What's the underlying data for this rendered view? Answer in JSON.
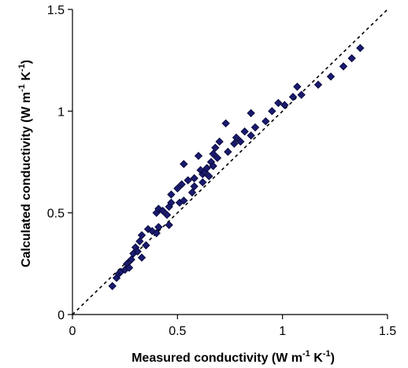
{
  "chart_data": {
    "type": "scatter",
    "xlabel": {
      "main": "Measured conductivity (W m",
      "sup1": "-1",
      "mid": " K",
      "sup2": "-1",
      "end": ")"
    },
    "ylabel": {
      "main": "Calculated conductivity (W m",
      "sup1": "-1",
      "mid": " K",
      "sup2": "-1",
      "end": ")"
    },
    "xlim": [
      0,
      1.5
    ],
    "ylim": [
      0,
      1.5
    ],
    "xticks": [
      {
        "value": 0,
        "label": "0"
      },
      {
        "value": 0.5,
        "label": "0.5"
      },
      {
        "value": 1,
        "label": "1"
      },
      {
        "value": 1.5,
        "label": "1.5"
      }
    ],
    "yticks": [
      {
        "value": 0,
        "label": "0"
      },
      {
        "value": 0.5,
        "label": "0.5"
      },
      {
        "value": 1,
        "label": "1"
      },
      {
        "value": 1.5,
        "label": "1.5"
      }
    ],
    "grid": false,
    "reference_line": {
      "style": "dashed",
      "from": [
        0,
        0
      ],
      "to": [
        1.5,
        1.5
      ]
    },
    "marker": {
      "shape": "diamond",
      "fill": "#1a1a6e",
      "stroke": "#000033"
    },
    "points": [
      [
        0.19,
        0.14
      ],
      [
        0.21,
        0.18
      ],
      [
        0.22,
        0.2
      ],
      [
        0.23,
        0.21
      ],
      [
        0.25,
        0.22
      ],
      [
        0.26,
        0.25
      ],
      [
        0.27,
        0.23
      ],
      [
        0.28,
        0.27
      ],
      [
        0.29,
        0.3
      ],
      [
        0.3,
        0.33
      ],
      [
        0.31,
        0.31
      ],
      [
        0.32,
        0.36
      ],
      [
        0.33,
        0.39
      ],
      [
        0.33,
        0.28
      ],
      [
        0.35,
        0.34
      ],
      [
        0.36,
        0.42
      ],
      [
        0.38,
        0.41
      ],
      [
        0.4,
        0.4
      ],
      [
        0.4,
        0.5
      ],
      [
        0.41,
        0.52
      ],
      [
        0.41,
        0.43
      ],
      [
        0.43,
        0.51
      ],
      [
        0.45,
        0.49
      ],
      [
        0.46,
        0.53
      ],
      [
        0.46,
        0.44
      ],
      [
        0.47,
        0.55
      ],
      [
        0.47,
        0.59
      ],
      [
        0.5,
        0.62
      ],
      [
        0.51,
        0.55
      ],
      [
        0.52,
        0.64
      ],
      [
        0.53,
        0.74
      ],
      [
        0.53,
        0.56
      ],
      [
        0.55,
        0.66
      ],
      [
        0.57,
        0.6
      ],
      [
        0.58,
        0.67
      ],
      [
        0.58,
        0.63
      ],
      [
        0.6,
        0.78
      ],
      [
        0.61,
        0.71
      ],
      [
        0.62,
        0.65
      ],
      [
        0.62,
        0.69
      ],
      [
        0.63,
        0.7
      ],
      [
        0.64,
        0.72
      ],
      [
        0.65,
        0.68
      ],
      [
        0.66,
        0.75
      ],
      [
        0.67,
        0.73
      ],
      [
        0.67,
        0.79
      ],
      [
        0.68,
        0.82
      ],
      [
        0.69,
        0.77
      ],
      [
        0.7,
        0.85
      ],
      [
        0.73,
        0.94
      ],
      [
        0.74,
        0.8
      ],
      [
        0.77,
        0.84
      ],
      [
        0.78,
        0.87
      ],
      [
        0.8,
        0.85
      ],
      [
        0.82,
        0.9
      ],
      [
        0.85,
        0.99
      ],
      [
        0.85,
        0.88
      ],
      [
        0.87,
        0.92
      ],
      [
        0.92,
        0.95
      ],
      [
        0.95,
        1.0
      ],
      [
        0.98,
        1.04
      ],
      [
        1.01,
        1.03
      ],
      [
        1.05,
        1.07
      ],
      [
        1.07,
        1.12
      ],
      [
        1.09,
        1.08
      ],
      [
        1.17,
        1.13
      ],
      [
        1.23,
        1.17
      ],
      [
        1.29,
        1.22
      ],
      [
        1.33,
        1.26
      ],
      [
        1.37,
        1.31
      ]
    ]
  }
}
